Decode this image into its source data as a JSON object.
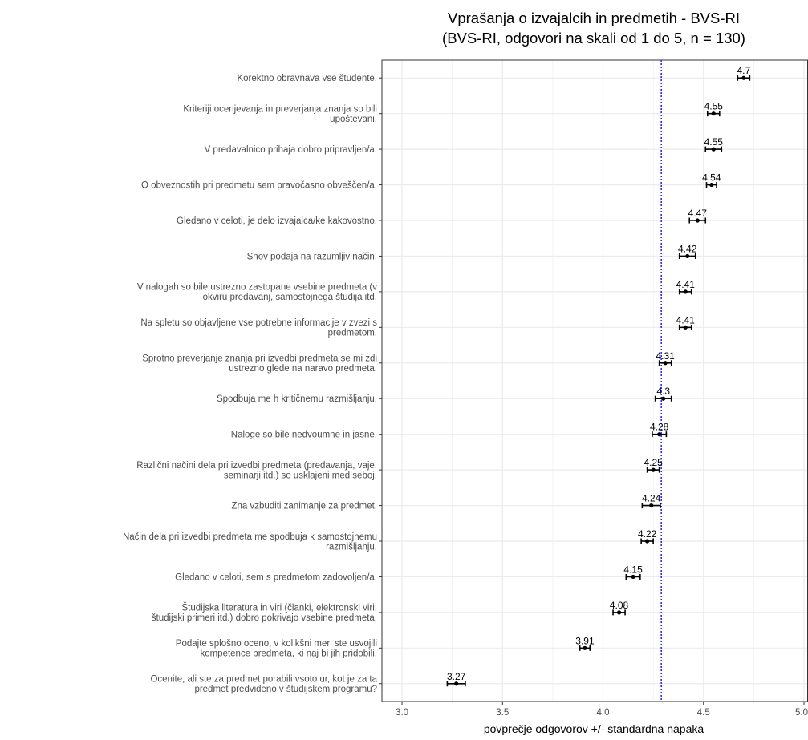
{
  "chart_data": {
    "type": "scatter",
    "title": "Vprašanja o izvajalcih in predmetih - BVS-RI",
    "subtitle": "(BVS-RI, odgovori na skali od 1 do 5, n = 130)",
    "xlabel": "povprečje odgovorov +/- standardna napaka",
    "ylabel": "",
    "xlim": [
      2.9,
      5.02
    ],
    "xticks": [
      3.0,
      3.5,
      4.0,
      4.5,
      5.0
    ],
    "xtick_labels": [
      "3.0",
      "3.5",
      "4.0",
      "4.5",
      "5.0"
    ],
    "reference_line": {
      "x": 4.29,
      "style": "dotted",
      "color": "#0000ff"
    },
    "grid": true,
    "legend": "none",
    "categories": [
      [
        "Korektno obravnava vse študente."
      ],
      [
        "Kriteriji ocenjevanja in preverjanja znanja so bili",
        "upoštevani."
      ],
      [
        "V predavalnico prihaja dobro pripravljen/a."
      ],
      [
        "O obveznostih pri predmetu sem pravočasno obveščen/a."
      ],
      [
        "Gledano v celoti, je delo izvajalca/ke kakovostno."
      ],
      [
        "Snov podaja na razumljiv način."
      ],
      [
        "V nalogah so bile ustrezno zastopane vsebine predmeta (v",
        "okviru predavanj, samostojnega študija itd."
      ],
      [
        "Na spletu so objavljene vse potrebne informacije v zvezi s",
        "predmetom."
      ],
      [
        "Sprotno preverjanje znanja pri izvedbi predmeta se mi zdi",
        "ustrezno glede na naravo predmeta."
      ],
      [
        "Spodbuja me h kritičnemu razmišljanju."
      ],
      [
        "Naloge so bile nedvoumne in jasne."
      ],
      [
        "Različni načini dela pri izvedbi predmeta (predavanja, vaje,",
        "seminarji itd.) so usklajeni med seboj."
      ],
      [
        "Zna vzbuditi zanimanje za predmet."
      ],
      [
        "Način dela pri izvedbi predmeta me spodbuja k samostojnemu",
        "razmišljanju."
      ],
      [
        "Gledano v celoti, sem s predmetom zadovoljen/a."
      ],
      [
        "Študijska literatura in viri (članki, elektronski viri,",
        "študijski primeri itd.) dobro pokrivajo vsebine predmeta."
      ],
      [
        "Podajte splošno oceno, v kolikšni meri ste usvojili",
        "kompetence predmeta, ki naj bi jih pridobili."
      ],
      [
        "Ocenite, ali ste za predmet porabili vsoto ur, kot je za ta",
        "predmet predvideno v študijskem programu?"
      ]
    ],
    "values": [
      4.7,
      4.55,
      4.55,
      4.54,
      4.47,
      4.42,
      4.41,
      4.41,
      4.31,
      4.3,
      4.28,
      4.25,
      4.24,
      4.22,
      4.15,
      4.08,
      3.91,
      3.27
    ],
    "value_labels": [
      "4.7",
      "4.55",
      "4.55",
      "4.54",
      "4.47",
      "4.42",
      "4.41",
      "4.41",
      "4.31",
      "4.3",
      "4.28",
      "4.25",
      "4.24",
      "4.22",
      "4.15",
      "4.08",
      "3.91",
      "3.27"
    ],
    "std_error": [
      0.03,
      0.03,
      0.04,
      0.025,
      0.04,
      0.04,
      0.03,
      0.03,
      0.03,
      0.04,
      0.035,
      0.03,
      0.045,
      0.03,
      0.035,
      0.03,
      0.025,
      0.045
    ],
    "colors": {
      "grid": "#ebebeb",
      "border": "#333333",
      "point": "#000000",
      "reference": "#0000ff"
    }
  }
}
